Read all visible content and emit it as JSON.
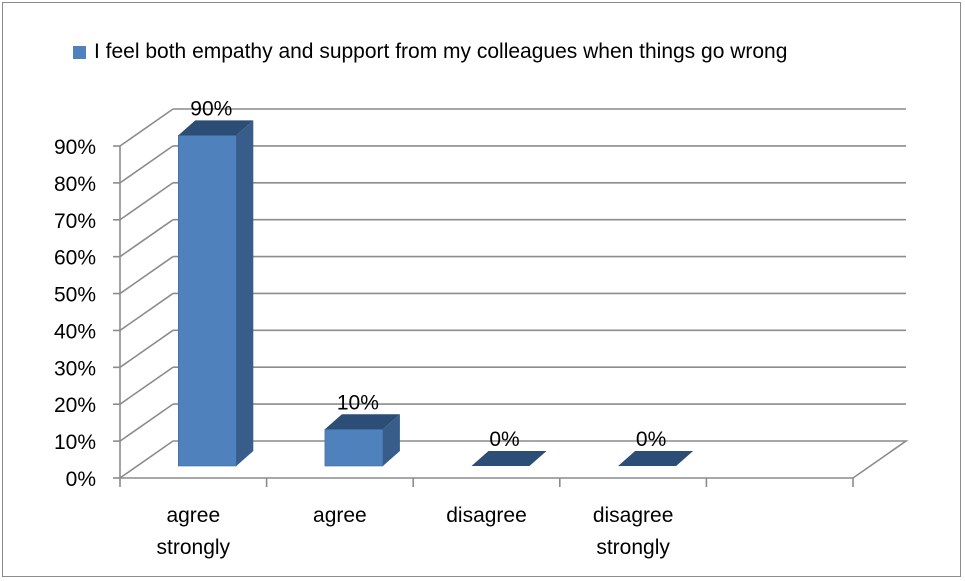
{
  "chart_data": {
    "type": "bar",
    "style": "3d-column",
    "categories": [
      [
        "agree",
        "strongly"
      ],
      [
        "agree"
      ],
      [
        "disagree"
      ],
      [
        "disagree",
        "strongly"
      ]
    ],
    "series": [
      {
        "name": "I feel both empathy and support from my colleagues when things go wrong",
        "values": [
          90,
          10,
          0,
          0
        ]
      }
    ],
    "data_labels": [
      "90%",
      "10%",
      "0%",
      "0%"
    ],
    "y_ticks": [
      "0%",
      "10%",
      "20%",
      "30%",
      "40%",
      "50%",
      "60%",
      "70%",
      "80%",
      "90%"
    ],
    "ylim": [
      0,
      90
    ],
    "grid": true,
    "legend_position": "top",
    "colors": {
      "front": "#4f81bd",
      "side": "#385d8a",
      "top": "#2c4d75",
      "grid": "#8c8c8c"
    }
  }
}
